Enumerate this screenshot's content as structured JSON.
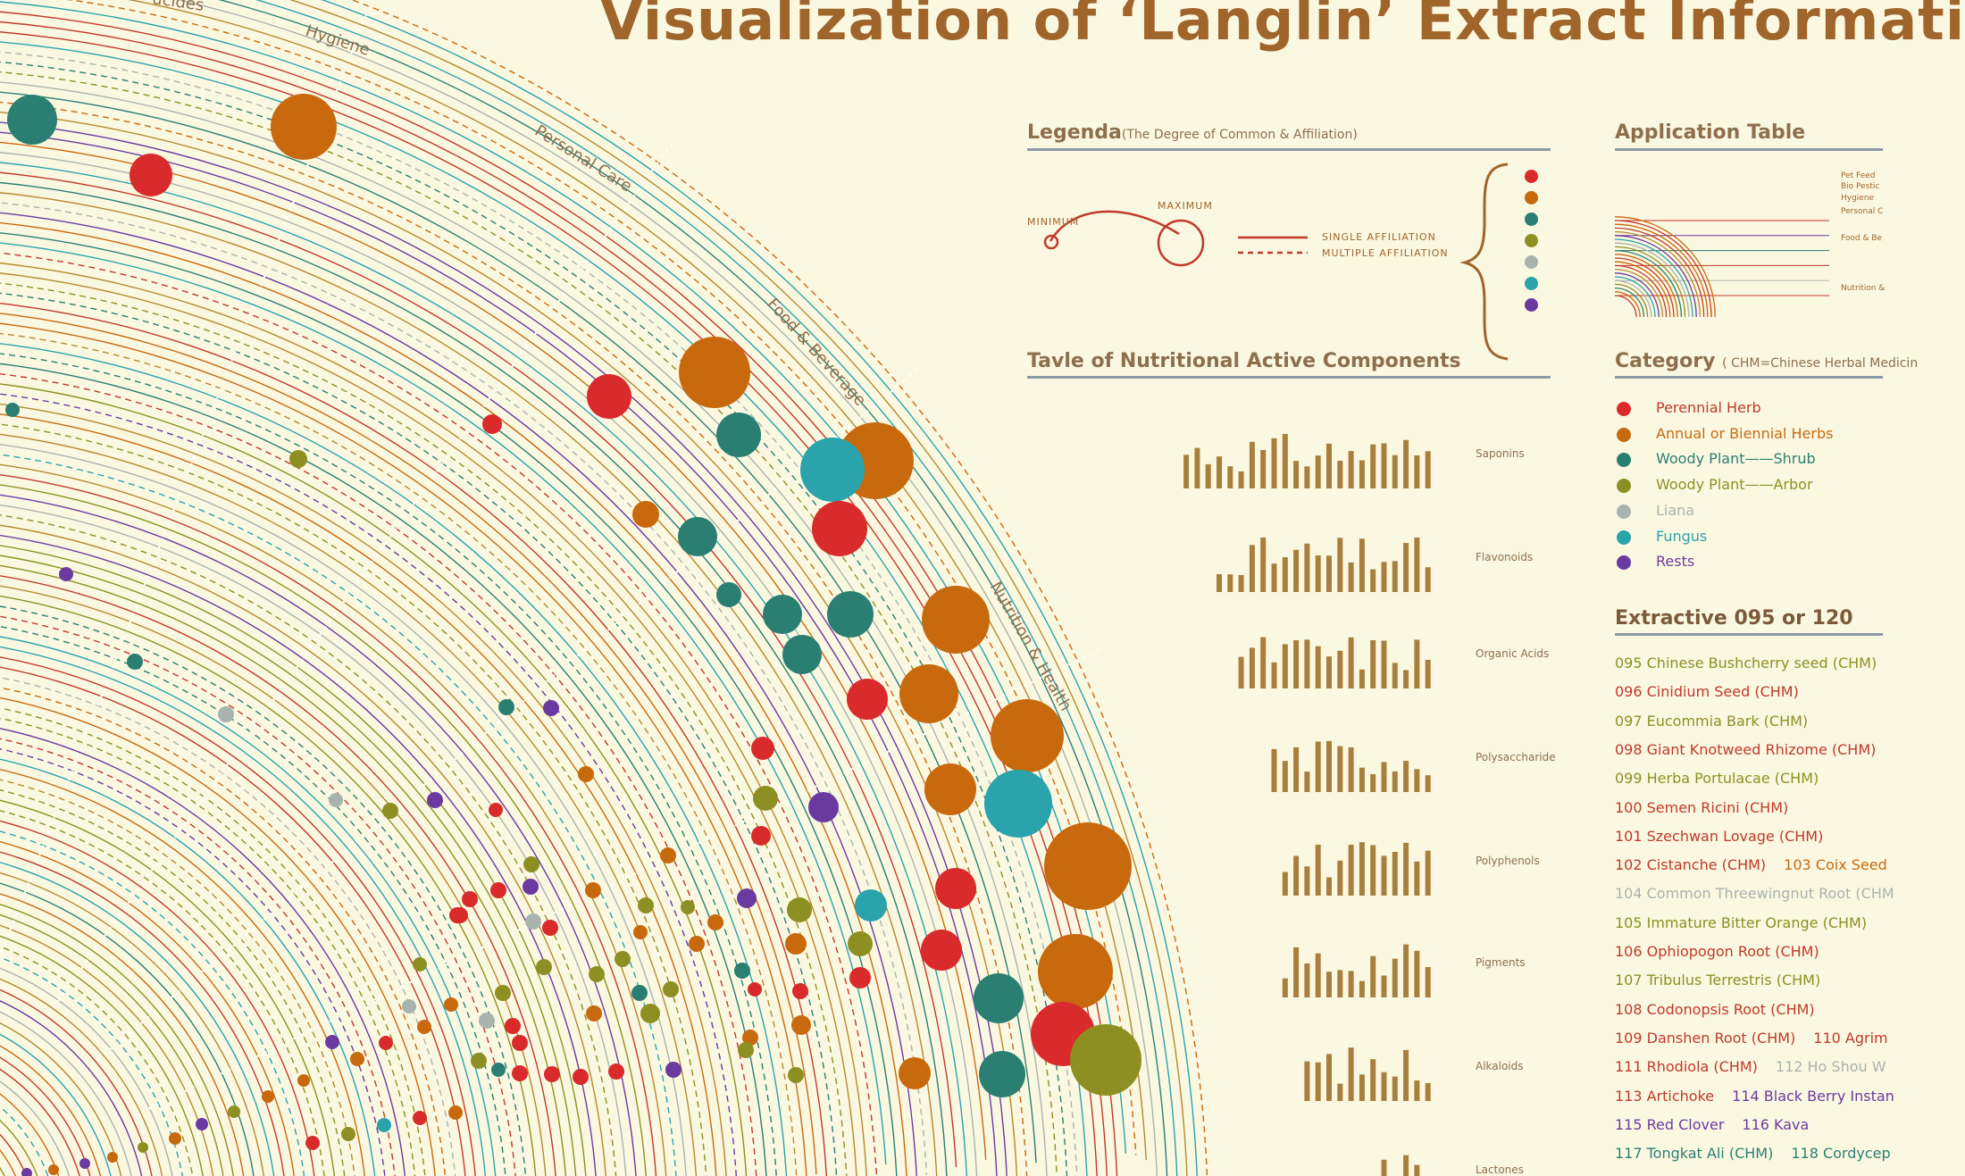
{
  "title": "Visualization of ‘Langlin’ Extract Informati",
  "ring_labels": [
    "ucides",
    "Hygiene",
    "Personal Care",
    "Food & Beverage",
    "Nutrition & Health"
  ],
  "legend": {
    "title": "Legenda",
    "subtitle": "(The Degree of Common & Affiliation)",
    "minimum": "MINIMUM",
    "maximum": "MAXIMUM",
    "single": "SINGLE  AFFILIATION",
    "multiple": "MULTIPLE  AFFILIATION",
    "dot_colors": [
      "#d92b2b",
      "#c8690e",
      "#2a7f72",
      "#8e8f22",
      "#a9b3ad",
      "#2aa3ad",
      "#6b3aa0"
    ]
  },
  "application_table": {
    "title": "Application  Table",
    "labels": [
      "Pet Feed",
      "Bio Pestic",
      "Hygiene",
      "Personal C",
      "Food & Be",
      "Nutrition &"
    ]
  },
  "nutrition_table": {
    "title": "Tavle  of  Nutritional  Active  Components",
    "components": [
      {
        "name": "Saponins",
        "bar_count": 23
      },
      {
        "name": "Flavonoids",
        "bar_count": 20
      },
      {
        "name": "Organic  Acids",
        "bar_count": 18
      },
      {
        "name": "Polysaccharide",
        "bar_count": 15
      },
      {
        "name": "Polyphenols",
        "bar_count": 14
      },
      {
        "name": "Pigments",
        "bar_count": 14
      },
      {
        "name": "Alkaloids",
        "bar_count": 12
      },
      {
        "name": "Lactones",
        "bar_count": 6
      }
    ]
  },
  "category": {
    "title": "Category",
    "subtitle": "( CHM=Chinese  Herbal  Medicin",
    "items": [
      {
        "label": "Perennial  Herb",
        "color": "#d92b2b",
        "text_color": "#c0392b"
      },
      {
        "label": "Annual  or  Biennial  Herbs",
        "color": "#c8690e",
        "text_color": "#c8690e"
      },
      {
        "label": "Woody  Plant——Shrub",
        "color": "#2a7f72",
        "text_color": "#2a7f72"
      },
      {
        "label": "Woody  Plant——Arbor",
        "color": "#8e8f22",
        "text_color": "#8e8f22"
      },
      {
        "label": "Liana",
        "color": "#a9b3ad",
        "text_color": "#a9b3ad"
      },
      {
        "label": "Fungus",
        "color": "#2aa3ad",
        "text_color": "#2aa3ad"
      },
      {
        "label": "Rests",
        "color": "#6b3aa0",
        "text_color": "#6b3aa0"
      }
    ]
  },
  "extractive": {
    "title": "Extractive  095  or  120",
    "items": [
      {
        "a": "095  Chinese  Bushcherry  seed  (CHM)",
        "ca": "#8e8f22"
      },
      {
        "a": "096  Cinidium  Seed  (CHM)",
        "ca": "#c0392b"
      },
      {
        "a": "097  Eucommia  Bark  (CHM)",
        "ca": "#8e8f22"
      },
      {
        "a": "098  Giant  Knotweed  Rhizome  (CHM)",
        "ca": "#c0392b"
      },
      {
        "a": "099  Herba  Portulacae  (CHM)",
        "ca": "#8e8f22"
      },
      {
        "a": "100  Semen  Ricini  (CHM)",
        "ca": "#c0392b"
      },
      {
        "a": "101  Szechwan  Lovage  (CHM)",
        "ca": "#c0392b"
      },
      {
        "a": "102  Cistanche  (CHM)",
        "ca": "#c0392b",
        "b": "103  Coix  Seed",
        "cb": "#c8690e"
      },
      {
        "a": "104  Common  Threewingnut  Root  (CHM",
        "ca": "#a9b3ad"
      },
      {
        "a": "105  Immature  Bitter  Orange  (CHM)",
        "ca": "#8e8f22"
      },
      {
        "a": "106  Ophiopogon  Root  (CHM)",
        "ca": "#c0392b"
      },
      {
        "a": "107  Tribulus  Terrestris  (CHM)",
        "ca": "#8e8f22"
      },
      {
        "a": "108  Codonopsis  Root  (CHM)",
        "ca": "#c0392b"
      },
      {
        "a": "109  Danshen  Root  (CHM)",
        "ca": "#c0392b",
        "b": "110  Agrim",
        "cb": "#c0392b"
      },
      {
        "a": "111  Rhodiola  (CHM)",
        "ca": "#c0392b",
        "b": "112  Ho  Shou  W",
        "cb": "#a9b3ad"
      },
      {
        "a": "113  Artichoke",
        "ca": "#c0392b",
        "b": "114  Black  Berry  Instan",
        "cb": "#6b3aa0"
      },
      {
        "a": "115  Red  Clover",
        "ca": "#6b3aa0",
        "b": "116  Kava",
        "cb": "#6b3aa0"
      },
      {
        "a": "117  Tongkat  Ali  (CHM)",
        "ca": "#2a7f72",
        "b": "118  Cordycep",
        "cb": "#2a7f72"
      }
    ]
  }
}
